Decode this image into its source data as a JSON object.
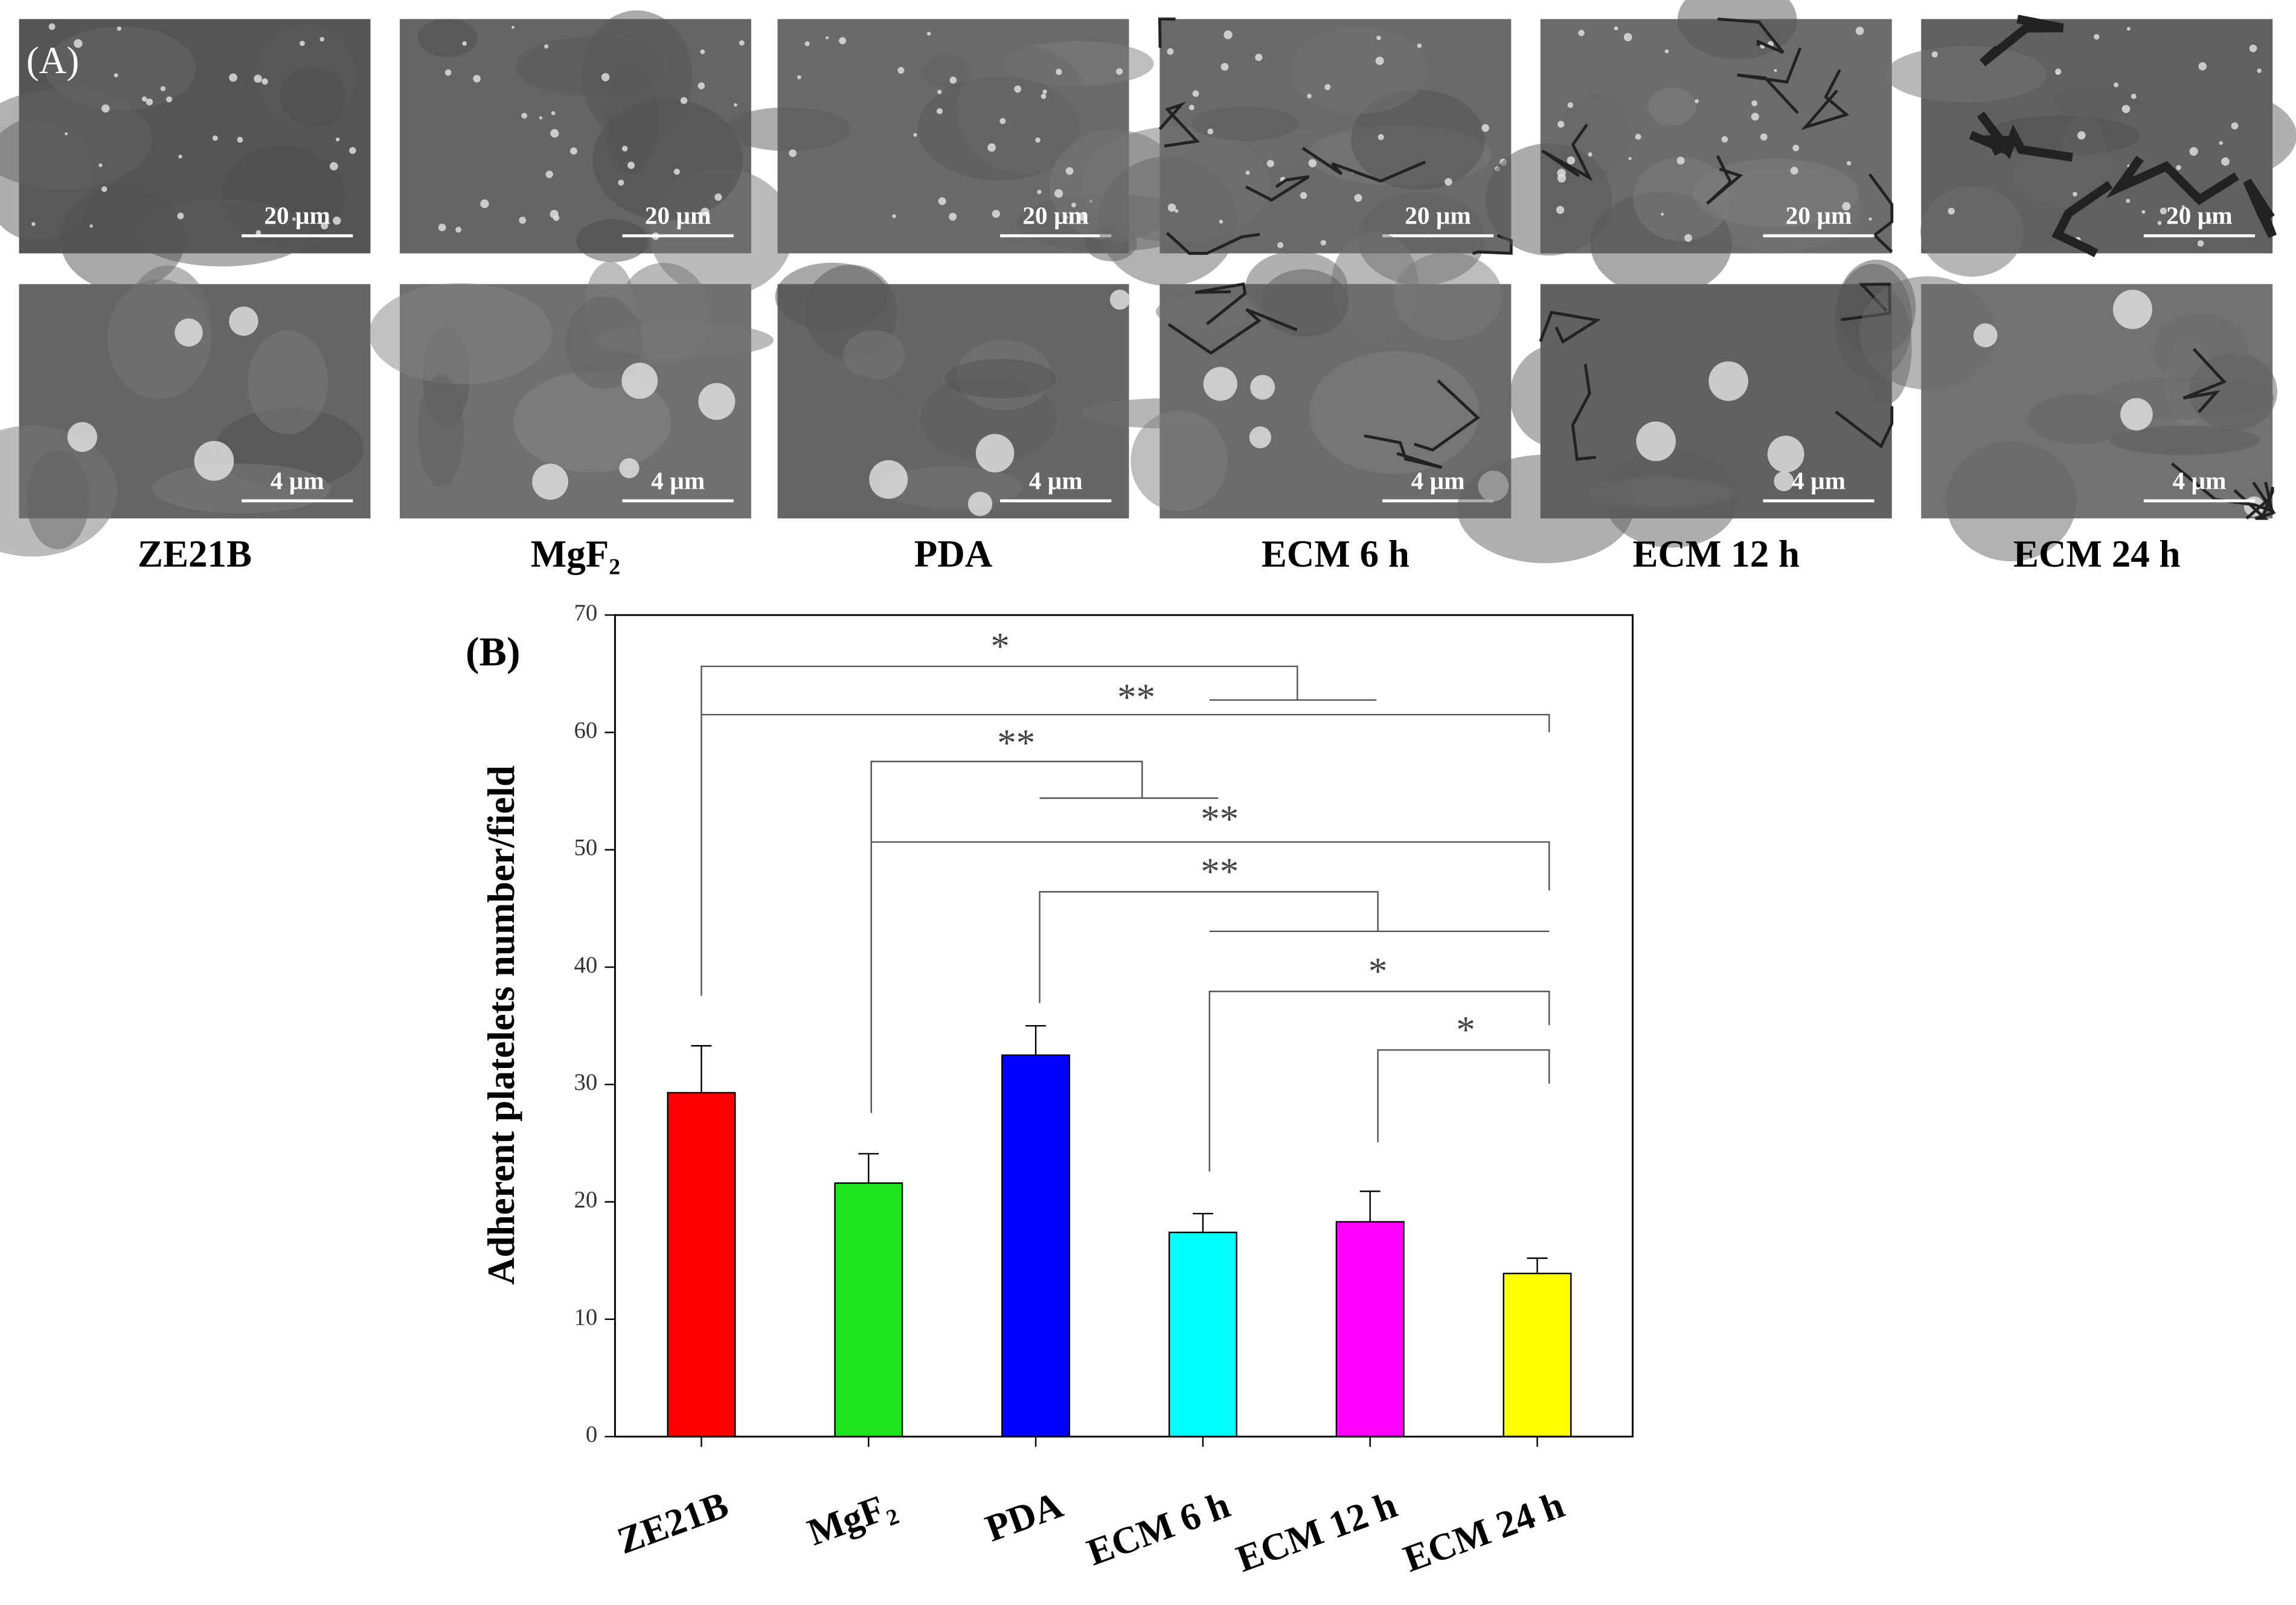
{
  "panel_a": {
    "label": "(A)",
    "samples": [
      "ZE21B",
      "MgF₂",
      "PDA",
      "ECM 6 h",
      "ECM 12 h",
      "ECM 24 h"
    ],
    "scale_bars": [
      "20 µm",
      "4 µm"
    ]
  },
  "chart_data": {
    "type": "bar",
    "panel_label": "(B)",
    "y_label": "Adherent platelets number/field",
    "categories": [
      "ZE21B",
      "MgF₂",
      "PDA",
      "ECM 6 h",
      "ECM 12 h",
      "ECM 24 h"
    ],
    "values": [
      29.3,
      21.6,
      32.5,
      17.4,
      18.3,
      13.9
    ],
    "errors": [
      4.0,
      2.5,
      2.5,
      1.6,
      2.6,
      1.3
    ],
    "colors": [
      "#ff0000",
      "#1ee61e",
      "#0000ff",
      "#00ffff",
      "#ff00ff",
      "#ffff00"
    ],
    "ylim": [
      0,
      70
    ],
    "yticks": [
      0,
      10,
      20,
      30,
      40,
      50,
      60,
      70
    ],
    "annotations": [
      "*",
      "**",
      "**",
      "**",
      "**",
      "*",
      "*"
    ]
  }
}
